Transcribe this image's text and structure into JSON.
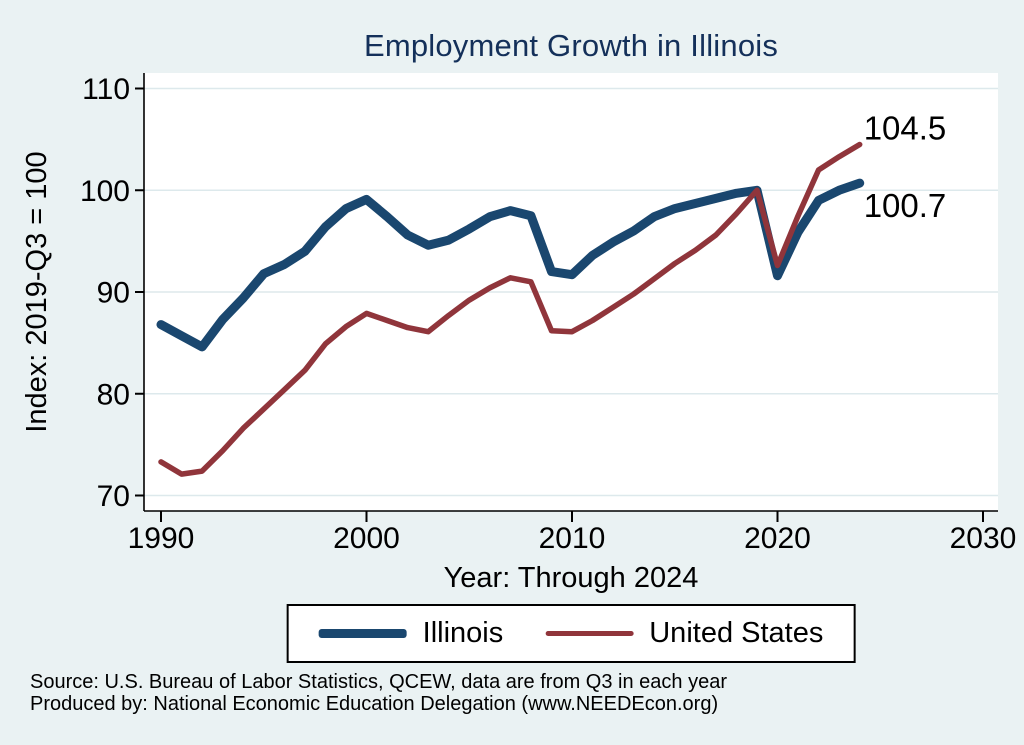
{
  "title": "Employment Growth in Illinois",
  "chart_data": {
    "type": "line",
    "title": "Employment Growth in Illinois",
    "xlabel": "Year: Through 2024",
    "ylabel": "Index: 2019-Q3 = 100",
    "xlim": [
      1989.1,
      2030.7
    ],
    "ylim": [
      68.3,
      111.6
    ],
    "x_ticks": [
      1990,
      2000,
      2010,
      2020,
      2030
    ],
    "y_ticks": [
      70,
      80,
      90,
      100,
      110
    ],
    "grid": true,
    "legend_position": "bottom",
    "years": [
      1990,
      1991,
      1992,
      1993,
      1994,
      1995,
      1996,
      1997,
      1998,
      1999,
      2000,
      2001,
      2002,
      2003,
      2004,
      2005,
      2006,
      2007,
      2008,
      2009,
      2010,
      2011,
      2012,
      2013,
      2014,
      2015,
      2016,
      2017,
      2018,
      2019,
      2020,
      2021,
      2022,
      2023,
      2024
    ],
    "series": [
      {
        "name": "Illinois",
        "color": "#1a476f",
        "line_width": 9,
        "end_label": "100.7",
        "values": [
          86.8,
          85.7,
          84.6,
          87.3,
          89.4,
          91.8,
          92.7,
          94.0,
          96.4,
          98.2,
          99.1,
          97.4,
          95.6,
          94.6,
          95.1,
          96.2,
          97.4,
          98.0,
          97.5,
          92.0,
          91.7,
          93.6,
          94.9,
          96.0,
          97.4,
          98.2,
          98.7,
          99.2,
          99.7,
          100.0,
          91.6,
          95.9,
          99.0,
          100.0,
          100.7
        ]
      },
      {
        "name": "United States",
        "color": "#90353b",
        "line_width": 5.5,
        "end_label": "104.5",
        "values": [
          73.3,
          72.1,
          72.4,
          74.4,
          76.6,
          78.5,
          80.4,
          82.3,
          84.9,
          86.6,
          87.9,
          87.2,
          86.5,
          86.1,
          87.7,
          89.2,
          90.4,
          91.4,
          91.0,
          86.2,
          86.1,
          87.2,
          88.5,
          89.8,
          91.3,
          92.8,
          94.1,
          95.6,
          97.7,
          100.0,
          92.6,
          97.5,
          102.0,
          103.3,
          104.5
        ]
      }
    ]
  },
  "source": {
    "line1": "Source: U.S. Bureau of Labor Statistics, QCEW, data are from Q3 in each year",
    "line2": "Produced by: National Economic Education Delegation (www.NEEDEcon.org)"
  },
  "colors": {
    "background": "#eaf2f3",
    "plot_background": "#ffffff",
    "gridline": "#dde9ec",
    "axis": "#000000",
    "title": "#14305a"
  }
}
